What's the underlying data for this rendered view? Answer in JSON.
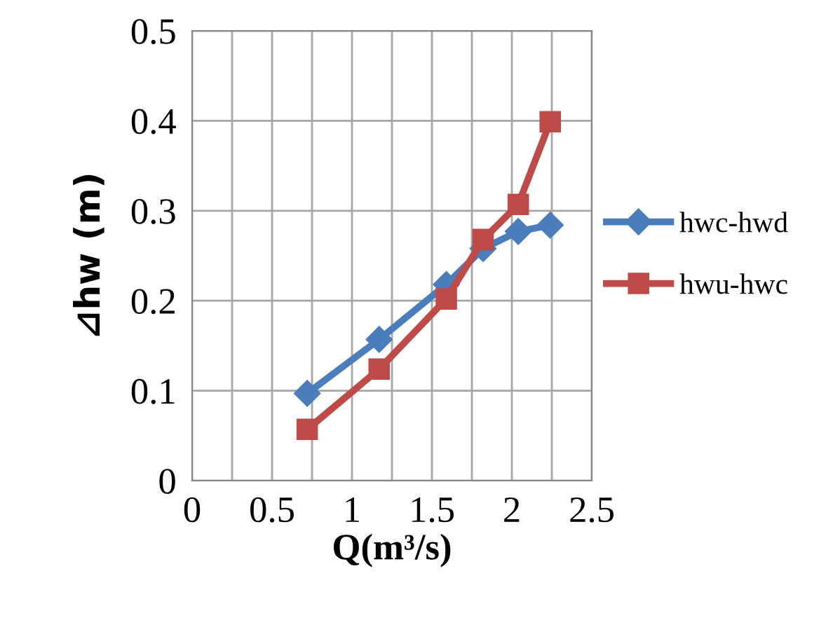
{
  "chart_data": {
    "type": "line",
    "xlabel": "Q(m³/s)",
    "ylabel": "⊿hw (m)",
    "xlim": [
      0,
      2.5
    ],
    "ylim": [
      0,
      0.5
    ],
    "xticks": [
      0,
      {
        "value": 0.25,
        "label": null
      },
      0.5,
      {
        "value": 0.75,
        "label": null
      },
      1,
      {
        "value": 1.25,
        "label": null
      },
      1.5,
      {
        "value": 1.75,
        "label": null
      },
      2,
      {
        "value": 2.25,
        "label": null
      },
      2.5
    ],
    "yticks": [
      0,
      0.1,
      0.2,
      0.3,
      0.4,
      0.5
    ],
    "grid": true,
    "legend": "right",
    "series": [
      {
        "name": "hwc-hwd",
        "color": "#4a7ebb",
        "marker": "diamond",
        "x": [
          0.72,
          1.17,
          1.59,
          1.82,
          2.04,
          2.24
        ],
        "values": [
          0.097,
          0.157,
          0.218,
          0.258,
          0.277,
          0.284
        ]
      },
      {
        "name": "hwu-hwc",
        "color": "#be4b48",
        "marker": "square",
        "x": [
          0.72,
          1.17,
          1.59,
          1.82,
          2.04,
          2.24
        ],
        "values": [
          0.057,
          0.124,
          0.202,
          0.268,
          0.307,
          0.399
        ]
      }
    ]
  }
}
